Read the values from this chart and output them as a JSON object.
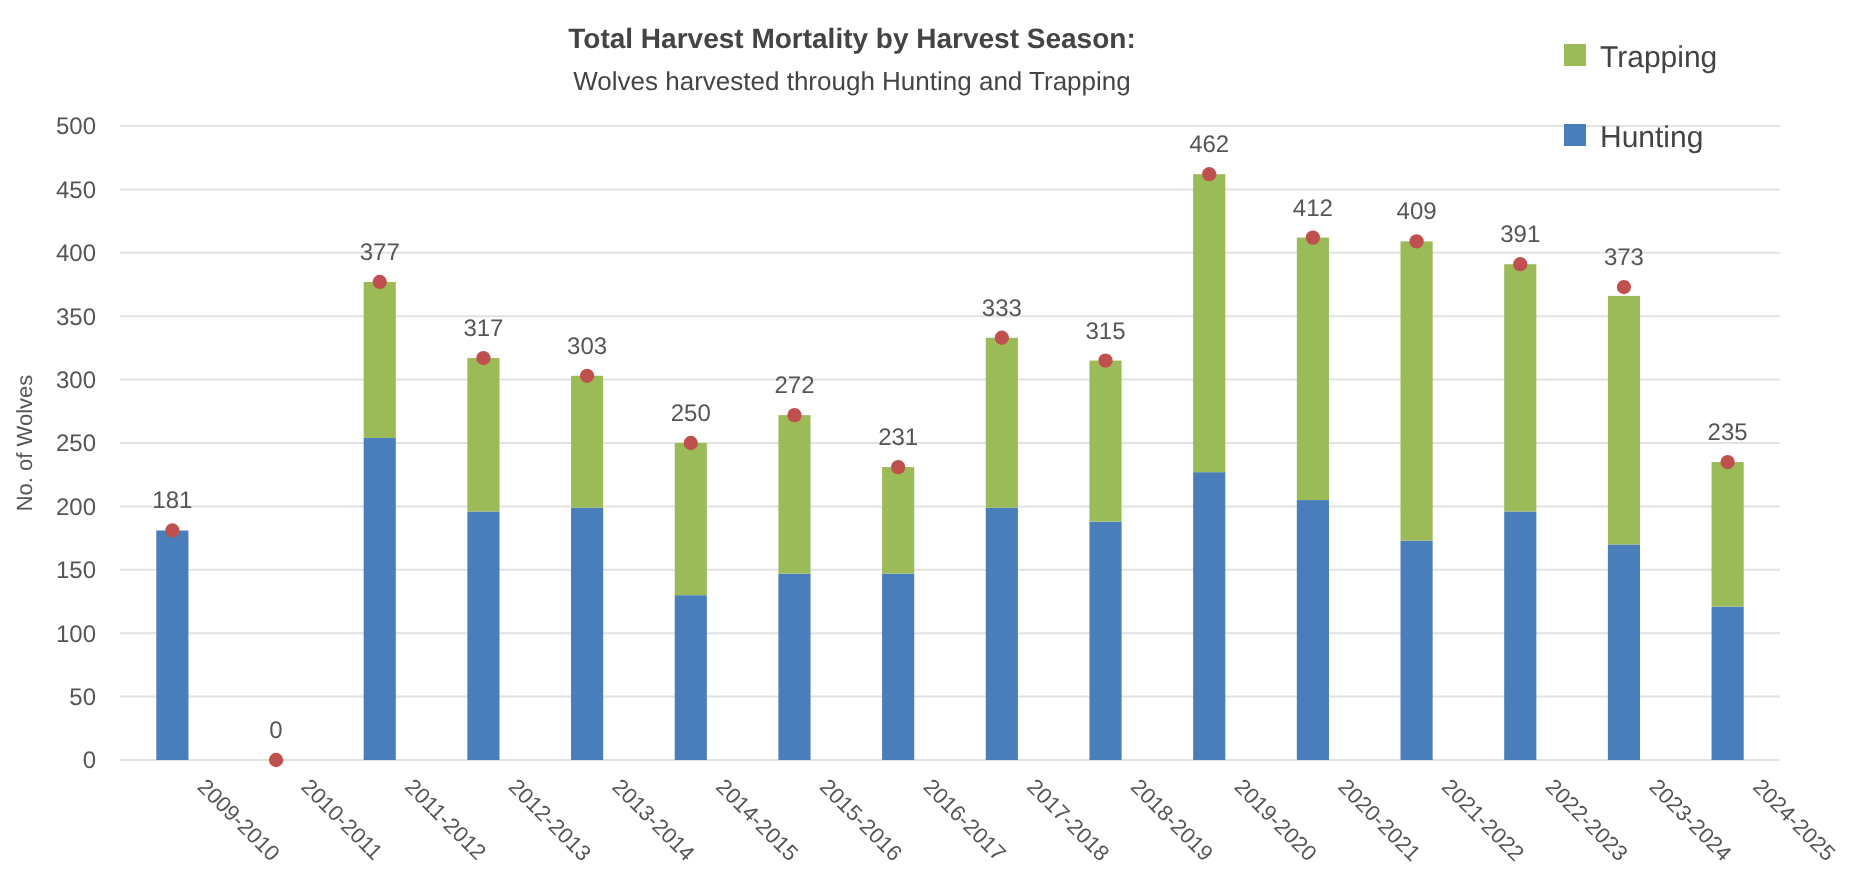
{
  "chart_data": {
    "type": "bar",
    "title": "Total Harvest Mortality by Harvest Season:",
    "subtitle": "Wolves harvested through Hunting and Trapping",
    "ylabel": "No. of Wolves",
    "categories": [
      "2009-2010",
      "2010-2011",
      "2011-2012",
      "2012-2013",
      "2013-2014",
      "2014-2015",
      "2015-2016",
      "2016-2017",
      "2017-2018",
      "2018-2019",
      "2019-2020",
      "2020-2021",
      "2021-2022",
      "2022-2023",
      "2023-2024",
      "2024-2025"
    ],
    "stacked": true,
    "series": [
      {
        "name": "Hunting",
        "color": "#4a7ebb",
        "values": [
          181,
          0,
          254,
          196,
          199,
          130,
          147,
          147,
          199,
          188,
          227,
          205,
          173,
          196,
          170,
          121
        ]
      },
      {
        "name": "Trapping",
        "color": "#9bbb59",
        "values": [
          0,
          0,
          123,
          121,
          104,
          120,
          125,
          84,
          134,
          127,
          235,
          207,
          236,
          195,
          196,
          114
        ]
      },
      {
        "type": "scatter",
        "color": "#c0504d",
        "marker": "circle",
        "values": [
          181,
          0,
          377,
          317,
          303,
          250,
          272,
          231,
          333,
          315,
          462,
          412,
          409,
          391,
          373,
          235
        ],
        "value_labels": [
          "181",
          "0",
          "377",
          "317",
          "303",
          "250",
          "272",
          "231",
          "333",
          "315",
          "462",
          "412",
          "409",
          "391",
          "373",
          "235"
        ]
      }
    ],
    "ylim": [
      0,
      500
    ],
    "yticks": [
      0,
      50,
      100,
      150,
      200,
      250,
      300,
      350,
      400,
      450,
      500
    ],
    "grid": "y",
    "legend": "top right"
  }
}
